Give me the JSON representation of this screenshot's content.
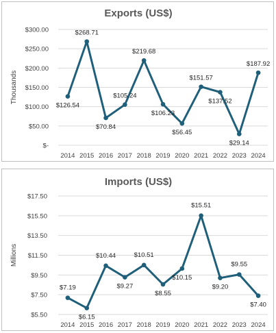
{
  "chart_data": [
    {
      "type": "line",
      "title": "Exports (US$)",
      "xlabel": "",
      "ylabel": "Thousands",
      "categories": [
        "2014",
        "2015",
        "2016",
        "2017",
        "2018",
        "2019",
        "2020",
        "2021",
        "2022",
        "2023",
        "2024"
      ],
      "values": [
        126.54,
        268.71,
        70.84,
        105.24,
        219.68,
        106.23,
        56.45,
        151.57,
        137.52,
        29.14,
        187.92
      ],
      "data_labels": [
        "$126.54",
        "$268.71",
        "$70.84",
        "$105.24",
        "$219.68",
        "$106.23",
        "$56.45",
        "$151.57",
        "$137.52",
        "$29.14",
        "$187.92"
      ],
      "ylim": [
        0,
        300
      ],
      "yticks": [
        0,
        50,
        100,
        150,
        200,
        250,
        300
      ],
      "ytick_labels": [
        "$-",
        "$50.00",
        "$100.00",
        "$150.00",
        "$200.00",
        "$250.00",
        "$300.00"
      ],
      "grid": true,
      "color": "#1f5f7a"
    },
    {
      "type": "line",
      "title": "Imports (US$)",
      "xlabel": "",
      "ylabel": "Millions",
      "categories": [
        "2014",
        "2015",
        "2016",
        "2017",
        "2018",
        "2019",
        "2020",
        "2021",
        "2022",
        "2023",
        "2024"
      ],
      "values": [
        7.19,
        6.15,
        10.44,
        9.27,
        10.51,
        8.55,
        10.15,
        15.51,
        9.2,
        9.55,
        7.4
      ],
      "data_labels": [
        "$7.19",
        "$6.15",
        "$10.44",
        "$9.27",
        "$10.51",
        "$8.55",
        "$10.15",
        "$15.51",
        "$9.20",
        "$9.55",
        "$7.40"
      ],
      "ylim": [
        5.5,
        17.5
      ],
      "yticks": [
        5.5,
        7.5,
        9.5,
        11.5,
        13.5,
        15.5,
        17.5
      ],
      "ytick_labels": [
        "$5.50",
        "$7.50",
        "$9.50",
        "$11.50",
        "$13.50",
        "$15.50",
        "$17.50"
      ],
      "grid": true,
      "color": "#1f5f7a"
    }
  ]
}
